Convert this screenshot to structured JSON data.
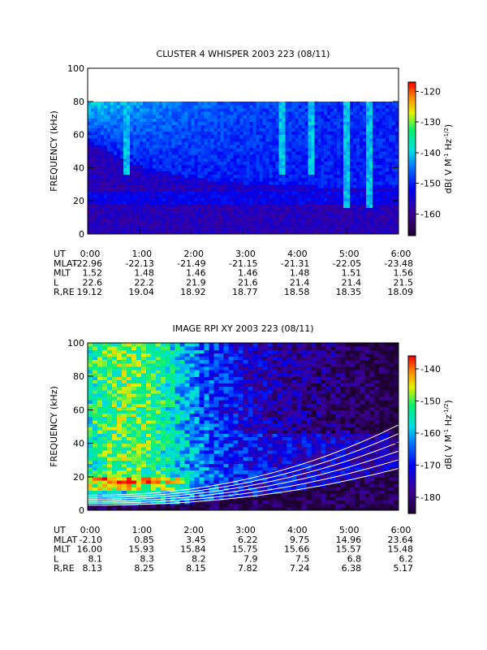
{
  "chart_data": [
    {
      "type": "spectrogram",
      "title": "CLUSTER 4 WHISPER 2003 223 (08/11)",
      "ylabel": "FREQUENCY (kHz)",
      "ylim": [
        0,
        100
      ],
      "yticks": [
        0,
        20,
        40,
        60,
        80,
        100
      ],
      "xlim": [
        0,
        6
      ],
      "xticks": [
        {
          "value": 0,
          "label": "0:00"
        },
        {
          "value": 1,
          "label": "1:00"
        },
        {
          "value": 2,
          "label": "2:00"
        },
        {
          "value": 3,
          "label": "3:00"
        },
        {
          "value": 4,
          "label": "4:00"
        },
        {
          "value": 5,
          "label": "5:00"
        },
        {
          "value": 6,
          "label": "6:00"
        }
      ],
      "x_label": "UT",
      "colorbar": {
        "label": [
          "dB( V M",
          "-1",
          " Hz",
          "-1/2",
          ")"
        ],
        "lim": [
          -167,
          -117
        ],
        "ticks": [
          -160,
          -150,
          -140,
          -130,
          -120
        ]
      },
      "ephemeris": [
        {
          "name": "MLAT",
          "values": [
            "-22.96",
            "-22.13",
            "-21.49",
            "-21.15",
            "-21.31",
            "-22.05",
            "-23.48"
          ]
        },
        {
          "name": "MLT",
          "values": [
            "1.52",
            "1.48",
            "1.46",
            "1.46",
            "1.48",
            "1.51",
            "1.56"
          ]
        },
        {
          "name": "L",
          "values": [
            "22.6",
            "22.2",
            "21.9",
            "21.6",
            "21.4",
            "21.4",
            "21.5"
          ]
        },
        {
          "name": "R,RE",
          "values": [
            "19.12",
            "19.04",
            "18.92",
            "18.77",
            "18.58",
            "18.35",
            "18.09"
          ]
        }
      ]
    },
    {
      "type": "spectrogram",
      "title": "IMAGE RPI XY 2003 223 (08/11)",
      "ylabel": "FREQUENCY (kHz)",
      "ylim": [
        0,
        100
      ],
      "yticks": [
        0,
        20,
        40,
        60,
        80,
        100
      ],
      "xlim": [
        0,
        6
      ],
      "xticks": [
        {
          "value": 0,
          "label": "0:00"
        },
        {
          "value": 1,
          "label": "1:00"
        },
        {
          "value": 2,
          "label": "2:00"
        },
        {
          "value": 3,
          "label": "3:00"
        },
        {
          "value": 4,
          "label": "4:00"
        },
        {
          "value": 5,
          "label": "5:00"
        },
        {
          "value": 6,
          "label": "6:00"
        }
      ],
      "x_label": "UT",
      "colorbar": {
        "label": [
          "dB( V M",
          "-1",
          " Hz",
          "-1/2",
          ")"
        ],
        "lim": [
          -185,
          -136
        ],
        "ticks": [
          -180,
          -170,
          -160,
          -150,
          -140
        ]
      },
      "ephemeris": [
        {
          "name": "MLAT",
          "values": [
            "-2.10",
            "0.85",
            "3.45",
            "6.22",
            "9.75",
            "14.96",
            "23.64"
          ]
        },
        {
          "name": "MLT",
          "values": [
            "16.00",
            "15.93",
            "15.84",
            "15.75",
            "15.66",
            "15.57",
            "15.48"
          ]
        },
        {
          "name": "L",
          "values": [
            "8.1",
            "8.3",
            "8.2",
            "7.9",
            "7.5",
            "6.8",
            "6.2"
          ]
        },
        {
          "name": "R,RE",
          "values": [
            "8.13",
            "8.25",
            "8.15",
            "7.82",
            "7.24",
            "6.38",
            "5.17"
          ]
        }
      ]
    }
  ]
}
